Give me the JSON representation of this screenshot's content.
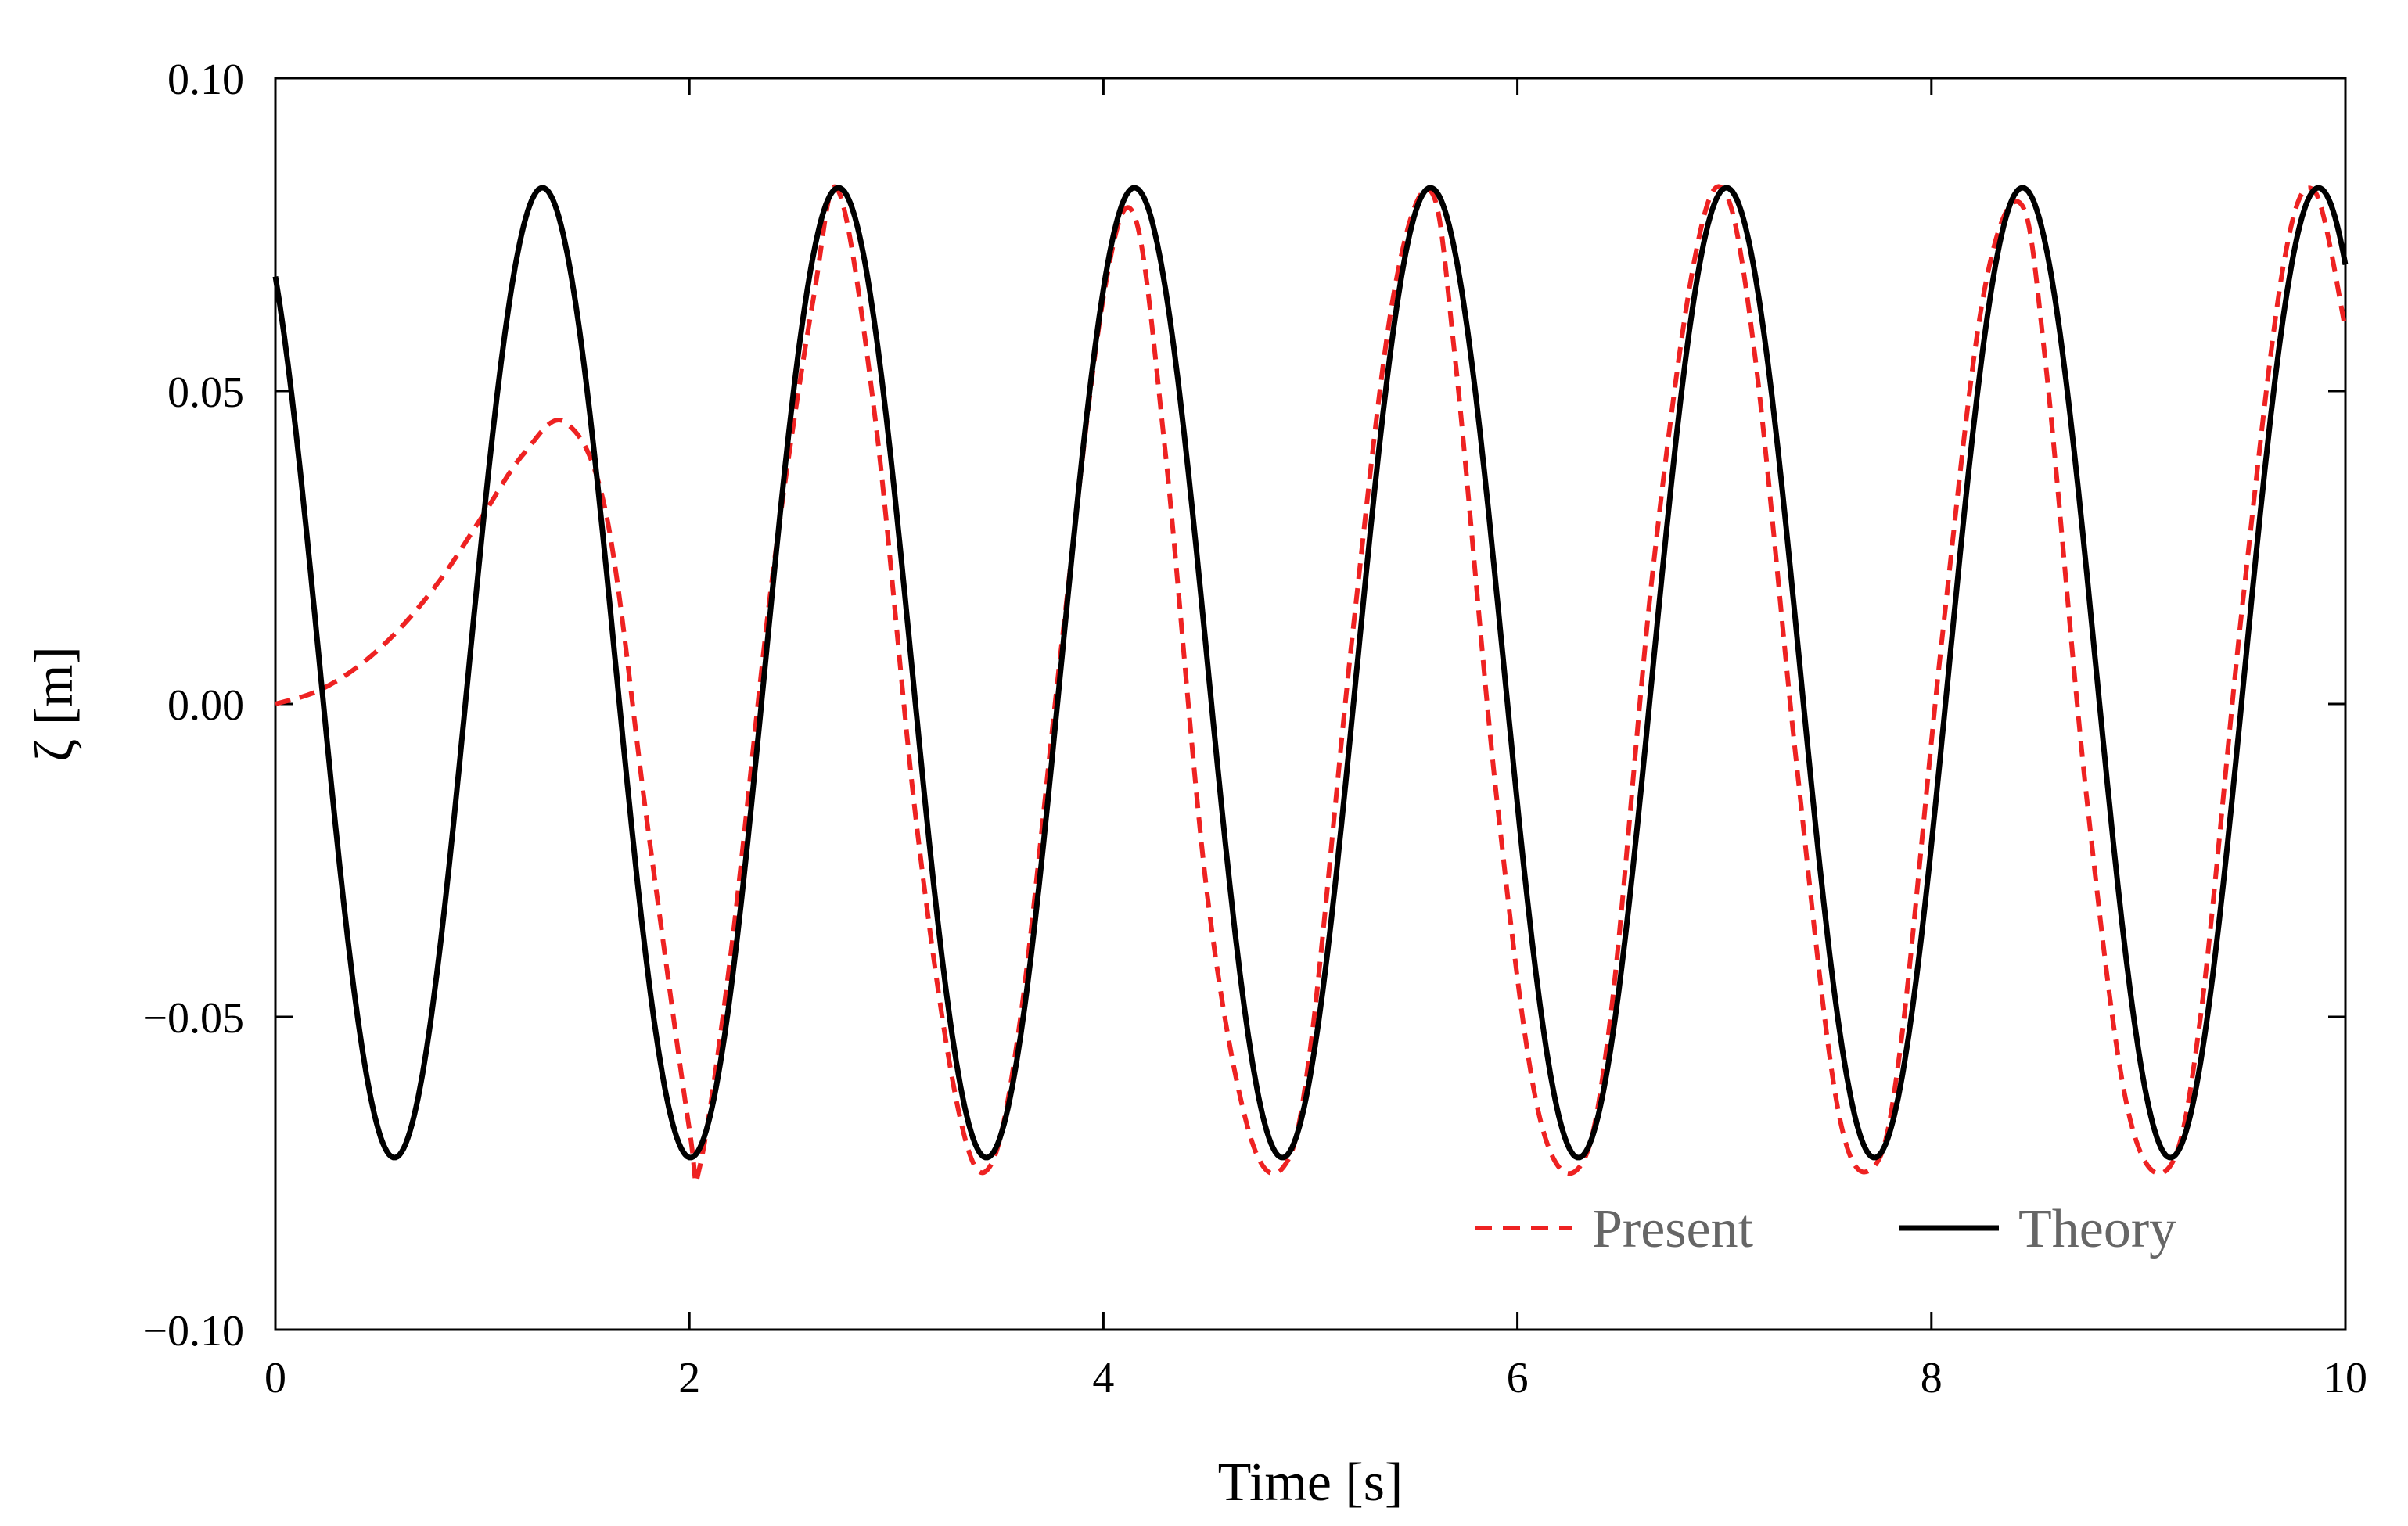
{
  "chart_data": {
    "type": "line",
    "xlabel": "Time [s]",
    "ylabel": "ζ [m]",
    "xlim": [
      0,
      10
    ],
    "ylim": [
      -0.1,
      0.1
    ],
    "xticks": [
      0,
      2,
      4,
      6,
      8,
      10
    ],
    "xtick_labels": [
      "0",
      "2",
      "4",
      "6",
      "8",
      "10"
    ],
    "yticks": [
      -0.1,
      -0.05,
      0.0,
      0.05,
      0.1
    ],
    "ytick_labels": [
      "−0.10",
      "−0.05",
      "0.00",
      "0.05",
      "0.10"
    ],
    "grid": false,
    "legend_position": "bottom-right",
    "series": [
      {
        "name": "Present",
        "style": "dashed",
        "color": "#ee2222",
        "x": [
          0,
          0.2,
          0.4,
          0.6,
          0.8,
          1.0,
          1.2,
          1.4,
          1.6,
          1.8,
          2.0,
          2.05,
          2.2,
          2.4,
          2.6,
          2.72,
          2.9,
          3.1,
          3.3,
          3.45,
          3.6,
          3.8,
          4.0,
          4.15,
          4.3,
          4.5,
          4.7,
          4.87,
          5.0,
          5.2,
          5.4,
          5.58,
          5.7,
          5.9,
          6.1,
          6.3,
          6.45,
          6.65,
          6.85,
          7.0,
          7.15,
          7.35,
          7.55,
          7.72,
          7.85,
          8.05,
          8.25,
          8.43,
          8.55,
          8.75,
          8.95,
          9.15,
          9.3,
          9.5,
          9.7,
          9.85,
          10.0
        ],
        "y": [
          0.0,
          0.002,
          0.006,
          0.012,
          0.02,
          0.03,
          0.04,
          0.045,
          0.03,
          -0.02,
          -0.068,
          -0.074,
          -0.04,
          0.02,
          0.065,
          0.082,
          0.045,
          -0.02,
          -0.065,
          -0.074,
          -0.05,
          0.01,
          0.065,
          0.078,
          0.04,
          -0.03,
          -0.068,
          -0.074,
          -0.055,
          0.01,
          0.065,
          0.082,
          0.055,
          -0.015,
          -0.065,
          -0.074,
          -0.05,
          0.02,
          0.07,
          0.082,
          0.055,
          -0.01,
          -0.065,
          -0.074,
          -0.055,
          0.01,
          0.065,
          0.08,
          0.055,
          -0.015,
          -0.065,
          -0.074,
          -0.05,
          0.015,
          0.07,
          0.082,
          0.06
        ]
      },
      {
        "name": "Theory",
        "style": "solid",
        "color": "#000000",
        "function": "0.005 + 0.0775*cos(2*pi*(t-1.29)/1.43)",
        "samples": 1000
      }
    ]
  }
}
